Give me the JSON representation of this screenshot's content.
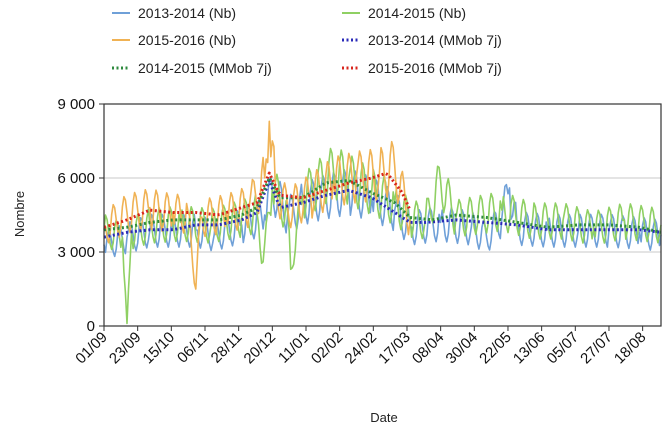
{
  "chart_data": {
    "type": "line",
    "xlabel": "Date",
    "ylabel": "Nombre",
    "ylim": [
      0,
      9000
    ],
    "yticks": [
      0,
      3000,
      6000,
      9000
    ],
    "ytick_labels": [
      "0",
      "3 000",
      "6 000",
      "9 000"
    ],
    "x_tick_labels": [
      "01/09",
      "23/09",
      "15/10",
      "06/11",
      "28/11",
      "20/12",
      "11/01",
      "02/02",
      "24/02",
      "17/03",
      "08/04",
      "30/04",
      "22/05",
      "13/06",
      "05/07",
      "27/07",
      "18/08"
    ],
    "x_range_days": [
      0,
      364
    ],
    "grid": "horizontal",
    "legend_position": "top",
    "series": [
      {
        "name": "2013-2014 (Nb)",
        "style": "solid",
        "color": "#6fa0d8",
        "kind": "daily",
        "points": [
          [
            0,
            3300
          ],
          [
            15,
            3600
          ],
          [
            30,
            3900
          ],
          [
            45,
            3900
          ],
          [
            60,
            3900
          ],
          [
            72,
            3700
          ],
          [
            90,
            4100
          ],
          [
            105,
            4500
          ],
          [
            110,
            5600
          ],
          [
            120,
            4500
          ],
          [
            130,
            5000
          ],
          [
            145,
            5300
          ],
          [
            160,
            5500
          ],
          [
            175,
            5200
          ],
          [
            190,
            4700
          ],
          [
            200,
            4000
          ],
          [
            220,
            4200
          ],
          [
            240,
            4000
          ],
          [
            250,
            3600
          ],
          [
            260,
            4400
          ],
          [
            265,
            5600
          ],
          [
            270,
            4000
          ],
          [
            290,
            3900
          ],
          [
            310,
            3900
          ],
          [
            330,
            3900
          ],
          [
            350,
            3800
          ],
          [
            364,
            3700
          ]
        ]
      },
      {
        "name": "2014-2015 (Nb)",
        "style": "solid",
        "color": "#8fd063",
        "kind": "daily",
        "points": [
          [
            0,
            3900
          ],
          [
            12,
            3600
          ],
          [
            15,
            100
          ],
          [
            18,
            3800
          ],
          [
            30,
            4100
          ],
          [
            50,
            4200
          ],
          [
            70,
            4100
          ],
          [
            90,
            4400
          ],
          [
            100,
            4600
          ],
          [
            104,
            2600
          ],
          [
            110,
            5600
          ],
          [
            120,
            4600
          ],
          [
            122,
            2300
          ],
          [
            130,
            5300
          ],
          [
            150,
            6300
          ],
          [
            160,
            6000
          ],
          [
            175,
            5500
          ],
          [
            190,
            5000
          ],
          [
            200,
            4400
          ],
          [
            210,
            4300
          ],
          [
            220,
            5900
          ],
          [
            230,
            4400
          ],
          [
            260,
            4700
          ],
          [
            280,
            4300
          ],
          [
            300,
            4300
          ],
          [
            320,
            4000
          ],
          [
            340,
            4300
          ],
          [
            364,
            4100
          ]
        ]
      },
      {
        "name": "2015-2016 (Nb)",
        "style": "solid",
        "color": "#f0b254",
        "kind": "daily",
        "points": [
          [
            0,
            4000
          ],
          [
            15,
            4600
          ],
          [
            30,
            4800
          ],
          [
            45,
            4600
          ],
          [
            55,
            4600
          ],
          [
            60,
            1500
          ],
          [
            63,
            4400
          ],
          [
            80,
            4600
          ],
          [
            95,
            4900
          ],
          [
            105,
            6000
          ],
          [
            108,
            8300
          ],
          [
            112,
            5600
          ],
          [
            120,
            4800
          ],
          [
            135,
            5300
          ],
          [
            150,
            5900
          ],
          [
            165,
            6100
          ],
          [
            180,
            6200
          ],
          [
            190,
            6500
          ],
          [
            200,
            4300
          ]
        ]
      },
      {
        "name": "2013-2014 (MMob 7j)",
        "style": "dotted",
        "color": "#2a2ab8",
        "kind": "smooth",
        "points": [
          [
            0,
            3600
          ],
          [
            15,
            3800
          ],
          [
            30,
            3900
          ],
          [
            45,
            3900
          ],
          [
            60,
            4100
          ],
          [
            75,
            4100
          ],
          [
            90,
            4300
          ],
          [
            100,
            4600
          ],
          [
            108,
            5900
          ],
          [
            115,
            4800
          ],
          [
            130,
            5000
          ],
          [
            145,
            5300
          ],
          [
            160,
            5500
          ],
          [
            175,
            5200
          ],
          [
            190,
            4600
          ],
          [
            200,
            4200
          ],
          [
            210,
            4200
          ],
          [
            230,
            4300
          ],
          [
            250,
            4200
          ],
          [
            270,
            4100
          ],
          [
            290,
            3900
          ],
          [
            310,
            3900
          ],
          [
            330,
            3900
          ],
          [
            350,
            3900
          ],
          [
            364,
            3800
          ]
        ]
      },
      {
        "name": "2014-2015 (MMob 7j)",
        "style": "dotted",
        "color": "#2e8a3e",
        "kind": "smooth",
        "points": [
          [
            0,
            3900
          ],
          [
            15,
            4000
          ],
          [
            30,
            4200
          ],
          [
            45,
            4300
          ],
          [
            60,
            4300
          ],
          [
            75,
            4300
          ],
          [
            90,
            4500
          ],
          [
            100,
            4800
          ],
          [
            108,
            6000
          ],
          [
            115,
            5200
          ],
          [
            130,
            5200
          ],
          [
            145,
            5800
          ],
          [
            160,
            5900
          ],
          [
            175,
            5400
          ],
          [
            190,
            5000
          ],
          [
            200,
            4400
          ],
          [
            215,
            4300
          ],
          [
            230,
            4500
          ],
          [
            250,
            4400
          ],
          [
            270,
            4200
          ],
          [
            290,
            4000
          ],
          [
            310,
            4100
          ],
          [
            330,
            4100
          ],
          [
            350,
            4000
          ],
          [
            364,
            3800
          ]
        ]
      },
      {
        "name": "2015-2016 (MMob 7j)",
        "style": "dotted",
        "color": "#d8251c",
        "kind": "smooth",
        "points": [
          [
            0,
            4000
          ],
          [
            15,
            4300
          ],
          [
            30,
            4700
          ],
          [
            45,
            4600
          ],
          [
            60,
            4600
          ],
          [
            75,
            4500
          ],
          [
            90,
            4800
          ],
          [
            100,
            5000
          ],
          [
            108,
            6200
          ],
          [
            115,
            5300
          ],
          [
            130,
            5200
          ],
          [
            145,
            5500
          ],
          [
            160,
            5800
          ],
          [
            175,
            6000
          ],
          [
            185,
            6200
          ],
          [
            195,
            5400
          ],
          [
            200,
            4700
          ]
        ]
      }
    ]
  }
}
